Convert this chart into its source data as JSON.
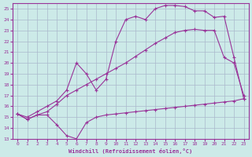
{
  "xlabel": "Windchill (Refroidissement éolien,°C)",
  "xlim": [
    -0.5,
    23.5
  ],
  "ylim": [
    13,
    25.5
  ],
  "yticks": [
    13,
    14,
    15,
    16,
    17,
    18,
    19,
    20,
    21,
    22,
    23,
    24,
    25
  ],
  "xticks": [
    0,
    1,
    2,
    3,
    4,
    5,
    6,
    7,
    8,
    9,
    10,
    11,
    12,
    13,
    14,
    15,
    16,
    17,
    18,
    19,
    20,
    21,
    22,
    23
  ],
  "bg_color": "#cceae8",
  "line_color": "#993399",
  "grid_color": "#aab8cc",
  "line1_x": [
    0,
    1,
    2,
    3,
    4,
    5,
    6,
    7,
    8,
    9,
    10,
    11,
    12,
    13,
    14,
    15,
    16,
    17,
    18,
    19,
    20,
    21,
    22,
    23
  ],
  "line1_y": [
    15.3,
    14.8,
    15.2,
    15.2,
    14.3,
    13.3,
    13.0,
    14.5,
    15.0,
    15.2,
    15.3,
    15.4,
    15.5,
    15.6,
    15.7,
    15.8,
    15.9,
    16.0,
    16.1,
    16.2,
    16.3,
    16.4,
    16.5,
    16.7
  ],
  "line2_x": [
    0,
    1,
    2,
    3,
    4,
    5,
    6,
    7,
    8,
    9,
    10,
    11,
    12,
    13,
    14,
    15,
    16,
    17,
    18,
    19,
    20,
    21,
    22,
    23
  ],
  "line2_y": [
    15.3,
    14.8,
    15.2,
    15.5,
    16.2,
    17.0,
    17.5,
    18.0,
    18.5,
    19.0,
    19.5,
    20.0,
    20.6,
    21.2,
    21.8,
    22.3,
    22.8,
    23.0,
    23.1,
    23.0,
    23.0,
    20.5,
    20.0,
    17.0
  ],
  "line3_x": [
    0,
    1,
    2,
    3,
    4,
    5,
    6,
    7,
    8,
    9,
    10,
    11,
    12,
    13,
    14,
    15,
    16,
    17,
    18,
    19,
    20,
    21,
    22,
    23
  ],
  "line3_y": [
    15.3,
    15.0,
    15.5,
    16.0,
    16.5,
    17.5,
    20.0,
    19.0,
    17.5,
    18.5,
    22.0,
    24.0,
    24.3,
    24.0,
    25.0,
    25.3,
    25.3,
    25.2,
    24.8,
    24.8,
    24.2,
    24.3,
    20.5,
    16.7
  ]
}
